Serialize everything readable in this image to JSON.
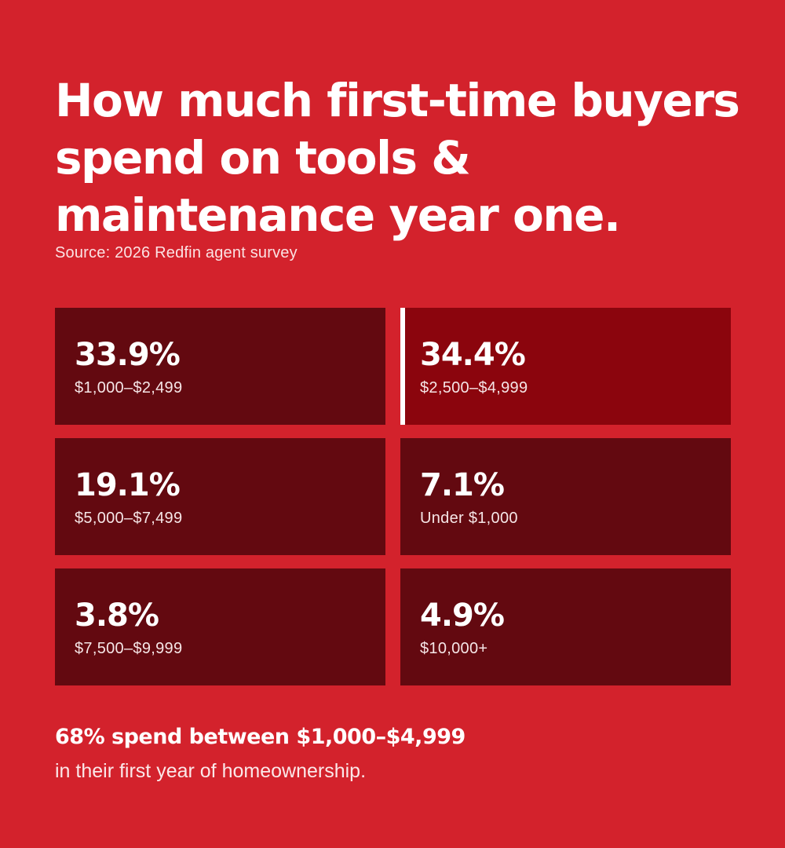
{
  "header": {
    "title": "How much first-time buyers spend on tools & maintenance year one.",
    "source": "Source: 2026 Redfin agent survey"
  },
  "colors": {
    "background": "#d3222c",
    "card": "#630910",
    "card_highlight": "#8b050d",
    "text": "#ffffff"
  },
  "stats": [
    {
      "value": "33.9%",
      "label": "$1,000–$2,499",
      "highlight": false
    },
    {
      "value": "34.4%",
      "label": "$2,500–$4,999",
      "highlight": true
    },
    {
      "value": "19.1%",
      "label": "$5,000–$7,499",
      "highlight": false
    },
    {
      "value": "7.1%",
      "label": "Under $1,000",
      "highlight": false
    },
    {
      "value": "3.8%",
      "label": "$7,500–$9,999",
      "highlight": false
    },
    {
      "value": "4.9%",
      "label": "$10,000+",
      "highlight": false
    }
  ],
  "callout": {
    "headline": "68% spend between $1,000–$4,999",
    "subtext": "in their first year of homeownership."
  },
  "chart_data": {
    "type": "table",
    "title": "How much first-time buyers spend on tools & maintenance year one.",
    "subtitle": "Source: 2026 Redfin agent survey",
    "categories": [
      "$1,000–$2,499",
      "$2,500–$4,999",
      "$5,000–$7,499",
      "Under $1,000",
      "$7,500–$9,999",
      "$10,000+"
    ],
    "values": [
      33.9,
      34.4,
      19.1,
      7.1,
      3.8,
      4.9
    ],
    "unit": "%",
    "annotations": [
      "68% spend between $1,000–$4,999 in their first year of homeownership."
    ]
  }
}
